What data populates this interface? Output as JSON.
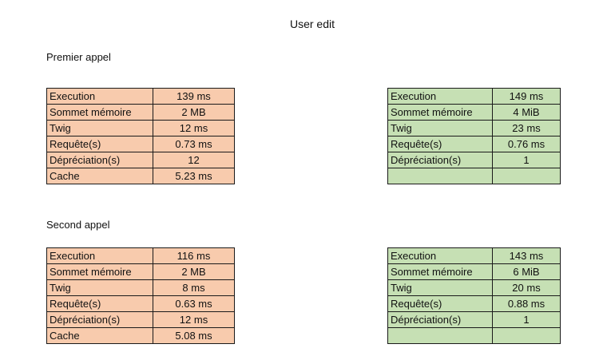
{
  "title": "User edit",
  "sections": [
    {
      "title": "Premier appel",
      "orange": [
        {
          "label": "Execution",
          "value": "139 ms"
        },
        {
          "label": "Sommet mémoire",
          "value": "2 MB"
        },
        {
          "label": "Twig",
          "value": "12 ms"
        },
        {
          "label": "Requête(s)",
          "value": "0.73 ms"
        },
        {
          "label": "Dépréciation(s)",
          "value": "12"
        },
        {
          "label": "Cache",
          "value": "5.23 ms"
        }
      ],
      "green": [
        {
          "label": "Execution",
          "value": "149 ms"
        },
        {
          "label": "Sommet mémoire",
          "value": "4 MiB"
        },
        {
          "label": "Twig",
          "value": "23 ms"
        },
        {
          "label": "Requête(s)",
          "value": "0.76 ms"
        },
        {
          "label": "Dépréciation(s)",
          "value": "1"
        },
        {
          "label": "",
          "value": ""
        }
      ]
    },
    {
      "title": "Second appel",
      "orange": [
        {
          "label": "Execution",
          "value": "116 ms"
        },
        {
          "label": "Sommet mémoire",
          "value": "2 MB"
        },
        {
          "label": "Twig",
          "value": "8 ms"
        },
        {
          "label": "Requête(s)",
          "value": "0.63 ms"
        },
        {
          "label": "Dépréciation(s)",
          "value": "12 ms"
        },
        {
          "label": "Cache",
          "value": "5.08 ms"
        }
      ],
      "green": [
        {
          "label": "Execution",
          "value": "143 ms"
        },
        {
          "label": "Sommet mémoire",
          "value": "6 MiB"
        },
        {
          "label": "Twig",
          "value": "20 ms"
        },
        {
          "label": "Requête(s)",
          "value": "0.88 ms"
        },
        {
          "label": "Dépréciation(s)",
          "value": "1"
        },
        {
          "label": "",
          "value": ""
        }
      ]
    }
  ],
  "colors": {
    "orange_fill": "#f8cbad",
    "green_fill": "#c6e0b4",
    "border": "#1a1a1a"
  }
}
